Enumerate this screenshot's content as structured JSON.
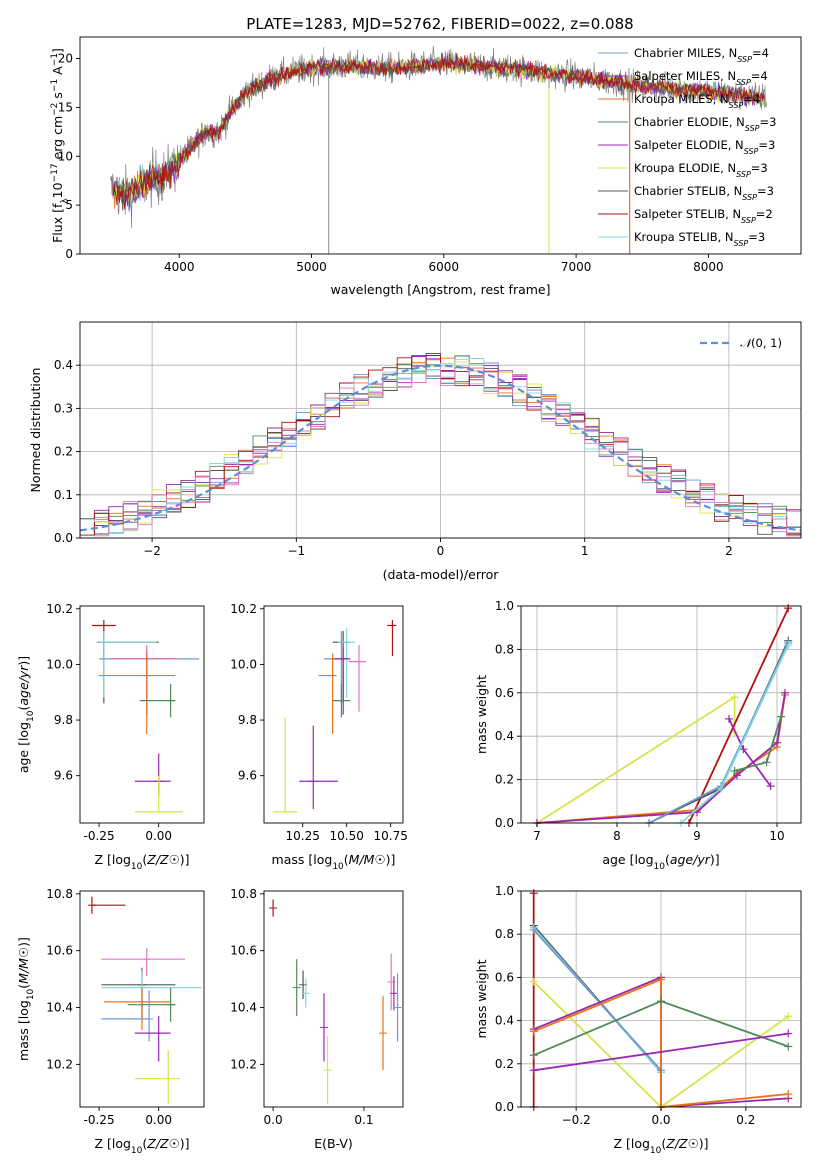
{
  "title": "PLATE=1283, MJD=52762, FIBERID=0022, z=0.088",
  "colors": {
    "Chabrier MILES": "#7099d0",
    "Salpeter MILES": "#9b27a8",
    "Kroupa MILES": "#e8741c",
    "Chabrier ELODIE": "#4f8a5a",
    "Salpeter ELODIE": "#9b27b8",
    "Kroupa ELODIE": "#d6e44a",
    "Chabrier STELIB": "#555555",
    "Salpeter STELIB": "#b01010",
    "Kroupa STELIB": "#80d8e0",
    "data": "#808080",
    "gauss": "#5b8ed8",
    "extra_pink": "#e377c2"
  },
  "legend_spectrum": [
    {
      "pre": "Chabrier MILES, N",
      "sub": "SSP",
      "post": "=4",
      "key": "Chabrier MILES"
    },
    {
      "pre": "Salpeter MILES, N",
      "sub": "SSP",
      "post": "=4",
      "key": "Salpeter MILES"
    },
    {
      "pre": "Kroupa MILES, N",
      "sub": "SSP",
      "post": "=4",
      "key": "Kroupa MILES"
    },
    {
      "pre": "Chabrier ELODIE, N",
      "sub": "SSP",
      "post": "=3",
      "key": "Chabrier ELODIE"
    },
    {
      "pre": "Salpeter ELODIE, N",
      "sub": "SSP",
      "post": "=3",
      "key": "Salpeter ELODIE"
    },
    {
      "pre": "Kroupa ELODIE, N",
      "sub": "SSP",
      "post": "=3",
      "key": "Kroupa ELODIE"
    },
    {
      "pre": "Chabrier STELIB, N",
      "sub": "SSP",
      "post": "=3",
      "key": "Chabrier STELIB"
    },
    {
      "pre": "Salpeter STELIB, N",
      "sub": "SSP",
      "post": "=2",
      "key": "Salpeter STELIB"
    },
    {
      "pre": "Kroupa STELIB, N",
      "sub": "SSP",
      "post": "=3",
      "key": "Kroupa STELIB"
    }
  ],
  "chart_data": [
    {
      "type": "line",
      "panel": "spectrum",
      "xlabel": "wavelength [Angstrom, rest frame]",
      "ylabel": "Flux [f_λ 10^-17 erg cm^-2 s^-1 A^-1]",
      "xlim": [
        3250,
        8700
      ],
      "ylim": [
        0,
        22.2
      ],
      "xticks": [
        4000,
        5000,
        6000,
        7000,
        8000
      ],
      "yticks": [
        0,
        5,
        10,
        15,
        20
      ],
      "continuum": {
        "x": [
          3500,
          3600,
          3700,
          3800,
          3900,
          4000,
          4100,
          4200,
          4300,
          4400,
          4500,
          4700,
          4900,
          5100,
          5300,
          5600,
          6000,
          6500,
          7000,
          7500,
          8000,
          8400
        ],
        "y": [
          6.5,
          6.0,
          6.8,
          7.8,
          8.0,
          9.5,
          11.0,
          12.5,
          12.5,
          14.8,
          16.5,
          18.0,
          18.8,
          19.2,
          19.2,
          19.0,
          19.5,
          19.0,
          18.2,
          17.2,
          16.6,
          16.0
        ]
      },
      "legend_loc": "upper right"
    },
    {
      "type": "histogram",
      "panel": "residuals",
      "xlabel": "(data-model)/error",
      "ylabel": "Normed distribution",
      "xlim": [
        -2.5,
        2.5
      ],
      "ylim": [
        0,
        0.5
      ],
      "xticks": [
        -2,
        -1,
        0,
        1,
        2
      ],
      "yticks": [
        0.0,
        0.1,
        0.2,
        0.3,
        0.4
      ],
      "bin_width": 0.1,
      "reference": {
        "name": "N(0,1)",
        "mean": 0,
        "sigma": 1
      },
      "grid": true
    },
    {
      "type": "errorbar",
      "panel": "Z-vs-age",
      "xlabel": "Z [log10(Z/Z☉)]",
      "ylabel": "age [log10(age/yr)]",
      "xlim": [
        -0.33,
        0.19
      ],
      "ylim": [
        9.43,
        10.21
      ],
      "xticks": [
        -0.25,
        0.0
      ],
      "xticklabels": [
        "-0.25",
        "0.00"
      ],
      "yticks": [
        9.6,
        9.8,
        10.0,
        10.2
      ],
      "points": [
        {
          "x": -0.23,
          "y": 10.14,
          "xerr": [
            0.05,
            0.05
          ],
          "yerr": [
            0.11,
            0.02
          ],
          "c": "Salpeter STELIB"
        },
        {
          "x": -0.23,
          "y": 10.08,
          "xerr": [
            0.03,
            0.23
          ],
          "yerr": [
            0.22,
            0.05
          ],
          "c": "Chabrier STELIB"
        },
        {
          "x": -0.23,
          "y": 10.08,
          "xerr": [
            0.03,
            0.22
          ],
          "yerr": [
            0.2,
            0.04
          ],
          "c": "Kroupa STELIB"
        },
        {
          "x": -0.05,
          "y": 10.02,
          "xerr": [
            0.2,
            0.22
          ],
          "yerr": [
            0.16,
            0.04
          ],
          "c": "Chabrier MILES"
        },
        {
          "x": -0.05,
          "y": 10.02,
          "xerr": [
            0.15,
            0.12
          ],
          "yerr": [
            0.2,
            0.03
          ],
          "c": "Salpeter MILES"
        },
        {
          "x": -0.05,
          "y": 10.02,
          "xerr": [
            0.15,
            0.13
          ],
          "yerr": [
            0.18,
            0.05
          ],
          "c": "extra_pink"
        },
        {
          "x": -0.05,
          "y": 9.96,
          "xerr": [
            0.2,
            0.12
          ],
          "yerr": [
            0.21,
            0.08
          ],
          "c": "Kroupa MILES"
        },
        {
          "x": 0.05,
          "y": 9.87,
          "xerr": [
            0.13,
            0.02
          ],
          "yerr": [
            0.06,
            0.06
          ],
          "c": "Chabrier ELODIE"
        },
        {
          "x": 0.0,
          "y": 9.58,
          "xerr": [
            0.1,
            0.05
          ],
          "yerr": [
            0.05,
            0.1
          ],
          "c": "Salpeter ELODIE"
        },
        {
          "x": 0.0,
          "y": 9.47,
          "xerr": [
            0.1,
            0.1
          ],
          "yerr": [
            0.0,
            0.13
          ],
          "c": "Kroupa ELODIE"
        }
      ]
    },
    {
      "type": "errorbar",
      "panel": "mass-vs-age",
      "xlabel": "mass [log10(M/M☉)]",
      "ylabel": "",
      "xlim": [
        10.03,
        10.82
      ],
      "ylim": [
        9.43,
        10.21
      ],
      "xticks": [
        10.25,
        10.5,
        10.75
      ],
      "xticklabels": [
        "10.25",
        "10.50",
        "10.75"
      ],
      "yticks": [
        9.6,
        9.8,
        10.0,
        10.2
      ],
      "points": [
        {
          "x": 10.76,
          "y": 10.14,
          "xerr": [
            0.03,
            0.02
          ],
          "yerr": [
            0.11,
            0.02
          ],
          "c": "Salpeter STELIB"
        },
        {
          "x": 10.48,
          "y": 10.08,
          "xerr": [
            0.06,
            0.04
          ],
          "yerr": [
            0.22,
            0.04
          ],
          "c": "Chabrier STELIB"
        },
        {
          "x": 10.5,
          "y": 10.08,
          "xerr": [
            0.05,
            0.05
          ],
          "yerr": [
            0.2,
            0.05
          ],
          "c": "Kroupa STELIB"
        },
        {
          "x": 10.47,
          "y": 10.02,
          "xerr": [
            0.1,
            0.05
          ],
          "yerr": [
            0.16,
            0.1
          ],
          "c": "Chabrier MILES"
        },
        {
          "x": 10.48,
          "y": 10.02,
          "xerr": [
            0.06,
            0.04
          ],
          "yerr": [
            0.2,
            0.04
          ],
          "c": "Salpeter MILES"
        },
        {
          "x": 10.57,
          "y": 10.01,
          "xerr": [
            0.06,
            0.04
          ],
          "yerr": [
            0.18,
            0.06
          ],
          "c": "extra_pink"
        },
        {
          "x": 10.42,
          "y": 9.96,
          "xerr": [
            0.08,
            0.02
          ],
          "yerr": [
            0.21,
            0.08
          ],
          "c": "Kroupa MILES"
        },
        {
          "x": 10.47,
          "y": 9.87,
          "xerr": [
            0.05,
            0.05
          ],
          "yerr": [
            0.06,
            0.06
          ],
          "c": "Chabrier ELODIE"
        },
        {
          "x": 10.31,
          "y": 9.58,
          "xerr": [
            0.08,
            0.14
          ],
          "yerr": [
            0.1,
            0.2
          ],
          "c": "Salpeter ELODIE"
        },
        {
          "x": 10.15,
          "y": 9.47,
          "xerr": [
            0.07,
            0.07
          ],
          "yerr": [
            0.0,
            0.34
          ],
          "c": "Kroupa ELODIE"
        }
      ]
    },
    {
      "type": "line",
      "panel": "age-vs-massweight",
      "xlabel": "age [log10(age/yr)]",
      "ylabel": "mass weight",
      "xlim": [
        6.8,
        10.3
      ],
      "ylim": [
        0,
        1
      ],
      "xticks": [
        7,
        8,
        9,
        10
      ],
      "yticks": [
        0.0,
        0.2,
        0.4,
        0.6,
        0.8,
        1.0
      ],
      "grid": true,
      "series": [
        {
          "c": "Kroupa ELODIE",
          "x": [
            7.0,
            9.47,
            9.47
          ],
          "y": [
            0.0,
            0.58,
            0.42
          ]
        },
        {
          "c": "Salpeter STELIB",
          "x": [
            8.9,
            10.14
          ],
          "y": [
            0.0,
            0.99
          ]
        },
        {
          "c": "Kroupa MILES",
          "x": [
            7.0,
            9.0,
            9.5,
            10.0,
            10.1
          ],
          "y": [
            0.0,
            0.06,
            0.23,
            0.35,
            0.59
          ]
        },
        {
          "c": "Salpeter MILES",
          "x": [
            7.0,
            9.0,
            9.5,
            10.0,
            10.1
          ],
          "y": [
            0.0,
            0.05,
            0.22,
            0.37,
            0.6
          ]
        },
        {
          "c": "Salpeter ELODIE",
          "x": [
            9.4,
            9.58,
            9.92
          ],
          "y": [
            0.48,
            0.34,
            0.17
          ]
        },
        {
          "c": "Chabrier ELODIE",
          "x": [
            9.47,
            9.87,
            10.05
          ],
          "y": [
            0.24,
            0.28,
            0.49
          ]
        },
        {
          "c": "Chabrier STELIB",
          "x": [
            8.4,
            9.3,
            10.14
          ],
          "y": [
            0.0,
            0.16,
            0.84
          ]
        },
        {
          "c": "Chabrier MILES",
          "x": [
            8.4,
            9.3,
            10.14
          ],
          "y": [
            0.0,
            0.17,
            0.83
          ]
        },
        {
          "c": "Kroupa STELIB",
          "x": [
            8.8,
            9.3,
            10.14
          ],
          "y": [
            0.0,
            0.16,
            0.82
          ]
        }
      ]
    },
    {
      "type": "errorbar",
      "panel": "Z-vs-mass",
      "xlabel": "Z [log10(Z/Z☉)]",
      "ylabel": "mass [log10(M/M☉)]",
      "xlim": [
        -0.33,
        0.19
      ],
      "ylim": [
        10.05,
        10.81
      ],
      "xticks": [
        -0.25,
        0.0
      ],
      "xticklabels": [
        "-0.25",
        "0.00"
      ],
      "yticks": [
        10.2,
        10.4,
        10.6,
        10.8
      ],
      "points": [
        {
          "x": -0.28,
          "y": 10.76,
          "xerr": [
            0.0,
            0.14
          ],
          "yerr": [
            0.03,
            0.03
          ],
          "c": "Salpeter STELIB"
        },
        {
          "x": -0.05,
          "y": 10.57,
          "xerr": [
            0.19,
            0.16
          ],
          "yerr": [
            0.06,
            0.04
          ],
          "c": "extra_pink"
        },
        {
          "x": -0.07,
          "y": 10.48,
          "xerr": [
            0.17,
            0.14
          ],
          "yerr": [
            0.12,
            0.06
          ],
          "c": "Chabrier STELIB"
        },
        {
          "x": -0.07,
          "y": 10.47,
          "xerr": [
            0.17,
            0.25
          ],
          "yerr": [
            0.12,
            0.06
          ],
          "c": "Kroupa STELIB"
        },
        {
          "x": -0.07,
          "y": 10.42,
          "xerr": [
            0.16,
            0.12
          ],
          "yerr": [
            0.1,
            0.05
          ],
          "c": "Kroupa MILES"
        },
        {
          "x": 0.05,
          "y": 10.41,
          "xerr": [
            0.18,
            0.02
          ],
          "yerr": [
            0.06,
            0.06
          ],
          "c": "Chabrier ELODIE"
        },
        {
          "x": -0.04,
          "y": 10.36,
          "xerr": [
            0.2,
            0.0
          ],
          "yerr": [
            0.08,
            0.1
          ],
          "c": "Chabrier MILES"
        },
        {
          "x": 0.0,
          "y": 10.31,
          "xerr": [
            0.1,
            0.05
          ],
          "yerr": [
            0.1,
            0.06
          ],
          "c": "Salpeter ELODIE"
        },
        {
          "x": 0.04,
          "y": 10.15,
          "xerr": [
            0.14,
            0.05
          ],
          "yerr": [
            0.09,
            0.1
          ],
          "c": "Kroupa ELODIE"
        }
      ]
    },
    {
      "type": "errorbar",
      "panel": "EBV-vs-mass",
      "xlabel": "E(B-V)",
      "ylabel": "",
      "xlim": [
        -0.01,
        0.143
      ],
      "ylim": [
        10.05,
        10.81
      ],
      "xticks": [
        0.0,
        0.1
      ],
      "xticklabels": [
        "0.0",
        "0.1"
      ],
      "yticks": [
        10.2,
        10.4,
        10.6,
        10.8
      ],
      "points": [
        {
          "x": 0.0,
          "y": 10.75,
          "yerr": [
            0.03,
            0.03
          ],
          "c": "Salpeter STELIB"
        },
        {
          "x": 0.026,
          "y": 10.47,
          "yerr": [
            0.1,
            0.1
          ],
          "c": "Chabrier ELODIE"
        },
        {
          "x": 0.033,
          "y": 10.48,
          "yerr": [
            0.05,
            0.05
          ],
          "c": "Chabrier STELIB"
        },
        {
          "x": 0.036,
          "y": 10.45,
          "yerr": [
            0.05,
            0.05
          ],
          "c": "Kroupa STELIB"
        },
        {
          "x": 0.056,
          "y": 10.33,
          "yerr": [
            0.12,
            0.12
          ],
          "c": "Salpeter ELODIE"
        },
        {
          "x": 0.06,
          "y": 10.18,
          "yerr": [
            0.12,
            0.12
          ],
          "c": "Kroupa ELODIE"
        },
        {
          "x": 0.121,
          "y": 10.31,
          "yerr": [
            0.13,
            0.13
          ],
          "c": "Kroupa MILES"
        },
        {
          "x": 0.13,
          "y": 10.49,
          "yerr": [
            0.1,
            0.1
          ],
          "c": "extra_pink"
        },
        {
          "x": 0.133,
          "y": 10.45,
          "yerr": [
            0.06,
            0.06
          ],
          "c": "Salpeter MILES"
        },
        {
          "x": 0.137,
          "y": 10.4,
          "yerr": [
            0.12,
            0.12
          ],
          "c": "Chabrier MILES"
        }
      ]
    },
    {
      "type": "line",
      "panel": "Z-vs-massweight",
      "xlabel": "Z [log10(Z/Z☉)]",
      "ylabel": "mass weight",
      "xlim": [
        -0.33,
        0.33
      ],
      "ylim": [
        0,
        1
      ],
      "xticks": [
        -0.2,
        0.0,
        0.2
      ],
      "xticklabels": [
        "−0.2",
        "0.0",
        "0.2"
      ],
      "yticks": [
        0.0,
        0.2,
        0.4,
        0.6,
        0.8,
        1.0
      ],
      "grid": true,
      "series": [
        {
          "c": "Salpeter STELIB",
          "x": [
            -0.3,
            -0.3
          ],
          "y": [
            0.0,
            0.99
          ]
        },
        {
          "c": "Kroupa ELODIE",
          "x": [
            -0.3,
            0.0,
            0.3
          ],
          "y": [
            0.58,
            0.0,
            0.42
          ]
        },
        {
          "c": "Chabrier STELIB",
          "x": [
            -0.3,
            0.0
          ],
          "y": [
            0.84,
            0.16
          ]
        },
        {
          "c": "Kroupa STELIB",
          "x": [
            -0.3,
            0.0
          ],
          "y": [
            0.83,
            0.16
          ]
        },
        {
          "c": "Chabrier MILES",
          "x": [
            -0.3,
            0.0
          ],
          "y": [
            0.82,
            0.17
          ]
        },
        {
          "c": "Salpeter MILES",
          "x": [
            -0.3,
            0.0,
            0.0,
            0.3
          ],
          "y": [
            0.36,
            0.6,
            0.0,
            0.04
          ]
        },
        {
          "c": "Kroupa MILES",
          "x": [
            -0.3,
            0.0,
            0.0,
            0.3
          ],
          "y": [
            0.35,
            0.59,
            0.0,
            0.06
          ]
        },
        {
          "c": "Chabrier ELODIE",
          "x": [
            -0.3,
            0.0,
            0.3
          ],
          "y": [
            0.24,
            0.49,
            0.28
          ]
        },
        {
          "c": "Salpeter ELODIE",
          "x": [
            -0.3,
            0.3
          ],
          "y": [
            0.17,
            0.34
          ]
        }
      ]
    }
  ]
}
